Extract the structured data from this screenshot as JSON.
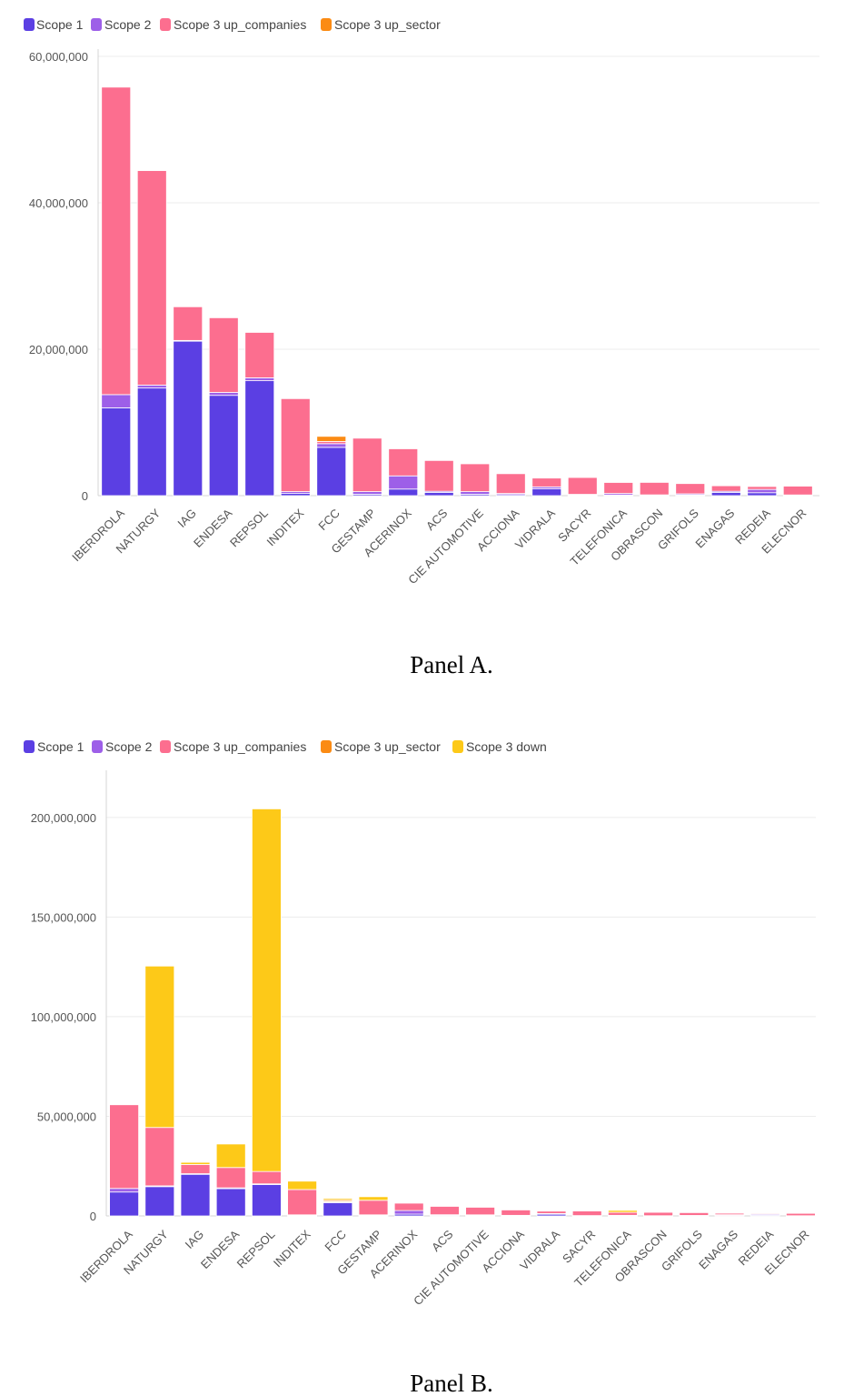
{
  "colors": {
    "Scope 1": "#5b3fe3",
    "Scope 2": "#9d5fe8",
    "Scope 3 up_companies": "#fc6e8f",
    "Scope 3 up_sector": "#fb8b14",
    "Scope 3 down": "#fdc918",
    "grid": "#ececec",
    "axis": "#d4d4d4"
  },
  "chart_data": [
    {
      "type": "bar",
      "stacked": true,
      "panel_caption": "Panel A.",
      "legend": [
        "Scope 1",
        "Scope 2",
        "Scope 3 up_companies",
        "Scope 3 up_sector"
      ],
      "categories": [
        "IBERDROLA",
        "NATURGY",
        "IAG",
        "ENDESA",
        "REPSOL",
        "INDITEX",
        "FCC",
        "GESTAMP",
        "ACERINOX",
        "ACS",
        "CIE AUTOMOTIVE",
        "ACCIONA",
        "VIDRALA",
        "SACYR",
        "TELEFONICA",
        "OBRASCON",
        "GRIFOLS",
        "ENAGAS",
        "REDEIA",
        "ELECNOR"
      ],
      "ylim": [
        0,
        60000000
      ],
      "yticks": [
        0,
        20000000,
        40000000,
        60000000
      ],
      "ytick_labels": [
        "0",
        "20,000,000",
        "40,000,000",
        "60,000,000"
      ],
      "series": [
        {
          "name": "Scope 1",
          "values": [
            12000000,
            14700000,
            21100000,
            13700000,
            15700000,
            300000,
            6600000,
            200000,
            900000,
            450000,
            200000,
            150000,
            950000,
            80000,
            100000,
            60000,
            100000,
            450000,
            400000,
            50000
          ]
        },
        {
          "name": "Scope 2",
          "values": [
            1800000,
            400000,
            100000,
            400000,
            400000,
            250000,
            500000,
            350000,
            1800000,
            150000,
            350000,
            150000,
            250000,
            100000,
            200000,
            50000,
            150000,
            150000,
            450000,
            50000
          ]
        },
        {
          "name": "Scope 3 up_companies",
          "values": [
            42000000,
            29300000,
            4600000,
            10200000,
            6200000,
            12700000,
            300000,
            7300000,
            3700000,
            4200000,
            3800000,
            2700000,
            1200000,
            2300000,
            1500000,
            1700000,
            1400000,
            750000,
            400000,
            1200000
          ]
        },
        {
          "name": "Scope 3 up_sector",
          "values": [
            0,
            0,
            0,
            0,
            0,
            0,
            700000,
            0,
            0,
            0,
            0,
            0,
            0,
            0,
            0,
            0,
            0,
            0,
            0,
            0
          ]
        }
      ]
    },
    {
      "type": "bar",
      "stacked": true,
      "panel_caption": "Panel B.",
      "legend": [
        "Scope 1",
        "Scope 2",
        "Scope 3 up_companies",
        "Scope 3 up_sector",
        "Scope 3 down"
      ],
      "categories": [
        "IBERDROLA",
        "NATURGY",
        "IAG",
        "ENDESA",
        "REPSOL",
        "INDITEX",
        "FCC",
        "GESTAMP",
        "ACERINOX",
        "ACS",
        "CIE AUTOMOTIVE",
        "ACCIONA",
        "VIDRALA",
        "SACYR",
        "TELEFONICA",
        "OBRASCON",
        "GRIFOLS",
        "ENAGAS",
        "REDEIA",
        "ELECNOR"
      ],
      "ylim": [
        0,
        220000000
      ],
      "yticks": [
        0,
        50000000,
        100000000,
        150000000,
        200000000
      ],
      "ytick_labels": [
        "0",
        "50,000,000",
        "100,000,000",
        "150,000,000",
        "200,000,000"
      ],
      "series": [
        {
          "name": "Scope 1",
          "values": [
            12000000,
            14700000,
            21100000,
            13700000,
            15700000,
            300000,
            6600000,
            200000,
            900000,
            450000,
            200000,
            150000,
            950000,
            80000,
            100000,
            60000,
            100000,
            450000,
            400000,
            50000
          ]
        },
        {
          "name": "Scope 2",
          "values": [
            1800000,
            400000,
            100000,
            400000,
            400000,
            250000,
            500000,
            350000,
            1800000,
            150000,
            350000,
            150000,
            250000,
            100000,
            200000,
            50000,
            150000,
            150000,
            450000,
            50000
          ]
        },
        {
          "name": "Scope 3 up_companies",
          "values": [
            42000000,
            29300000,
            4600000,
            10200000,
            6200000,
            12700000,
            300000,
            7300000,
            3700000,
            4200000,
            3800000,
            2700000,
            1200000,
            2300000,
            1500000,
            1700000,
            1400000,
            750000,
            400000,
            1200000
          ]
        },
        {
          "name": "Scope 3 up_sector",
          "values": [
            0,
            0,
            0,
            0,
            0,
            0,
            700000,
            0,
            0,
            0,
            0,
            0,
            0,
            0,
            0,
            0,
            0,
            0,
            0,
            0
          ]
        },
        {
          "name": "Scope 3 down",
          "values": [
            0,
            81000000,
            1100000,
            11800000,
            182000000,
            4200000,
            700000,
            1800000,
            0,
            0,
            0,
            0,
            0,
            0,
            1000000,
            0,
            0,
            0,
            0,
            0
          ]
        }
      ]
    }
  ]
}
